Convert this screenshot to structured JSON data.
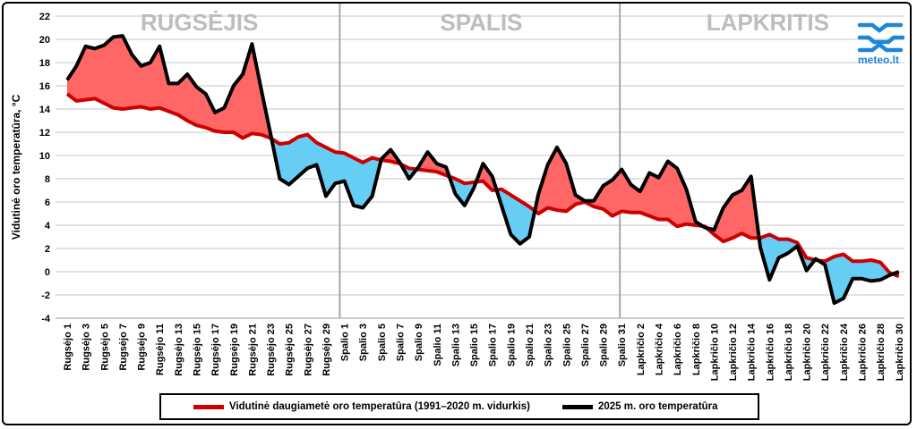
{
  "chart_data": {
    "type": "area",
    "ylabel": "Vidutinė oro temperatūra, °C",
    "ylim": [
      -4,
      22
    ],
    "yticks": [
      -4,
      -2,
      0,
      2,
      4,
      6,
      8,
      10,
      12,
      14,
      16,
      18,
      20,
      22
    ],
    "grid": true,
    "month_labels": [
      "RUGSĖJIS",
      "SPALIS",
      "LAPKRITIS"
    ],
    "x_tick_labels": [
      "Rugsėjo 1",
      "Rugsėjo 3",
      "Rugsėjo 5",
      "Rugsėjo 7",
      "Rugsėjo 9",
      "Rugsėjo 11",
      "Rugsėjo 13",
      "Rugsėjo 15",
      "Rugsėjo 17",
      "Rugsėjo 19",
      "Rugsėjo 21",
      "Rugsėjo 23",
      "Rugsėjo 25",
      "Rugsėjo 27",
      "Rugsėjo 29",
      "Spalio 1",
      "Spalio 3",
      "Spalio 5",
      "Spalio 7",
      "Spalio 9",
      "Spalio 11",
      "Spalio 13",
      "Spalio 15",
      "Spalio 17",
      "Spalio 19",
      "Spalio 21",
      "Spalio 23",
      "Spalio 25",
      "Spalio 27",
      "Spalio 29",
      "Spalio 31",
      "Lapkričio 2",
      "Lapkričio 4",
      "Lapkričio 6",
      "Lapkričio 8",
      "Lapkričio 10",
      "Lapkričio 12",
      "Lapkričio 14",
      "Lapkričio 16",
      "Lapkričio 18",
      "Lapkričio 20",
      "Lapkričio 22",
      "Lapkričio 24",
      "Lapkričio 26",
      "Lapkričio 28",
      "Lapkričio 30"
    ],
    "series": [
      {
        "name": "Vidutinė daugiametė oro temperatūra (1991–2020 m. vidurkis)",
        "color": "#cc0000",
        "values": [
          15.3,
          14.7,
          14.8,
          14.9,
          14.5,
          14.1,
          14.0,
          14.1,
          14.2,
          14.0,
          14.1,
          13.8,
          13.5,
          13.0,
          12.6,
          12.4,
          12.1,
          12.0,
          12.0,
          11.5,
          11.9,
          11.8,
          11.5,
          11.0,
          11.1,
          11.6,
          11.8,
          11.1,
          10.7,
          10.3,
          10.2,
          9.8,
          9.4,
          9.8,
          9.6,
          9.5,
          9.3,
          8.9,
          8.8,
          8.7,
          8.6,
          8.3,
          8.0,
          7.6,
          7.7,
          7.8,
          7.0,
          7.1,
          6.6,
          6.1,
          5.6,
          5.0,
          5.5,
          5.3,
          5.2,
          5.8,
          6.0,
          5.6,
          5.4,
          4.8,
          5.2,
          5.1,
          5.1,
          4.8,
          4.5,
          4.5,
          3.9,
          4.1,
          4.0,
          3.9,
          3.2,
          2.6,
          2.9,
          3.3,
          2.9,
          2.9,
          3.2,
          2.8,
          2.8,
          2.5,
          1.2,
          1.0,
          0.9,
          1.3,
          1.5,
          0.9,
          0.9,
          1.0,
          0.8,
          -0.1,
          -0.4
        ]
      },
      {
        "name": "2025 m. oro temperatūra",
        "color": "#000000",
        "values": [
          16.5,
          17.7,
          19.4,
          19.2,
          19.5,
          20.2,
          20.3,
          18.7,
          17.7,
          18.0,
          19.4,
          16.2,
          16.2,
          17.0,
          15.9,
          15.3,
          13.7,
          14.1,
          16.0,
          17.0,
          19.6,
          15.7,
          11.9,
          8.0,
          7.5,
          8.2,
          8.9,
          9.2,
          6.5,
          7.6,
          7.8,
          5.7,
          5.5,
          6.5,
          9.7,
          10.5,
          9.4,
          8.0,
          9.0,
          10.3,
          9.3,
          9.0,
          6.7,
          5.7,
          7.2,
          9.3,
          8.2,
          5.7,
          3.2,
          2.4,
          3.0,
          6.7,
          9.2,
          10.7,
          9.3,
          6.6,
          6.1,
          6.1,
          7.4,
          7.9,
          8.8,
          7.5,
          6.9,
          8.5,
          8.1,
          9.5,
          8.9,
          7.1,
          4.3,
          3.8,
          3.6,
          5.5,
          6.6,
          7.0,
          8.2,
          2.1,
          -0.7,
          1.2,
          1.6,
          2.2,
          0.1,
          1.1,
          0.6,
          -2.7,
          -2.3,
          -0.6,
          -0.6,
          -0.8,
          -0.7,
          -0.3,
          0.0
        ]
      }
    ],
    "fill_colors": {
      "above": "#ff6666",
      "below": "#66cdf4"
    }
  },
  "legend": {
    "normal_label": "Vidutinė daugiametė oro temperatūra (1991–2020 m. vidurkis)",
    "actual_label": "2025 m. oro temperatūra"
  },
  "logo": {
    "text": "meteo.lt",
    "color": "#1c86d8"
  }
}
